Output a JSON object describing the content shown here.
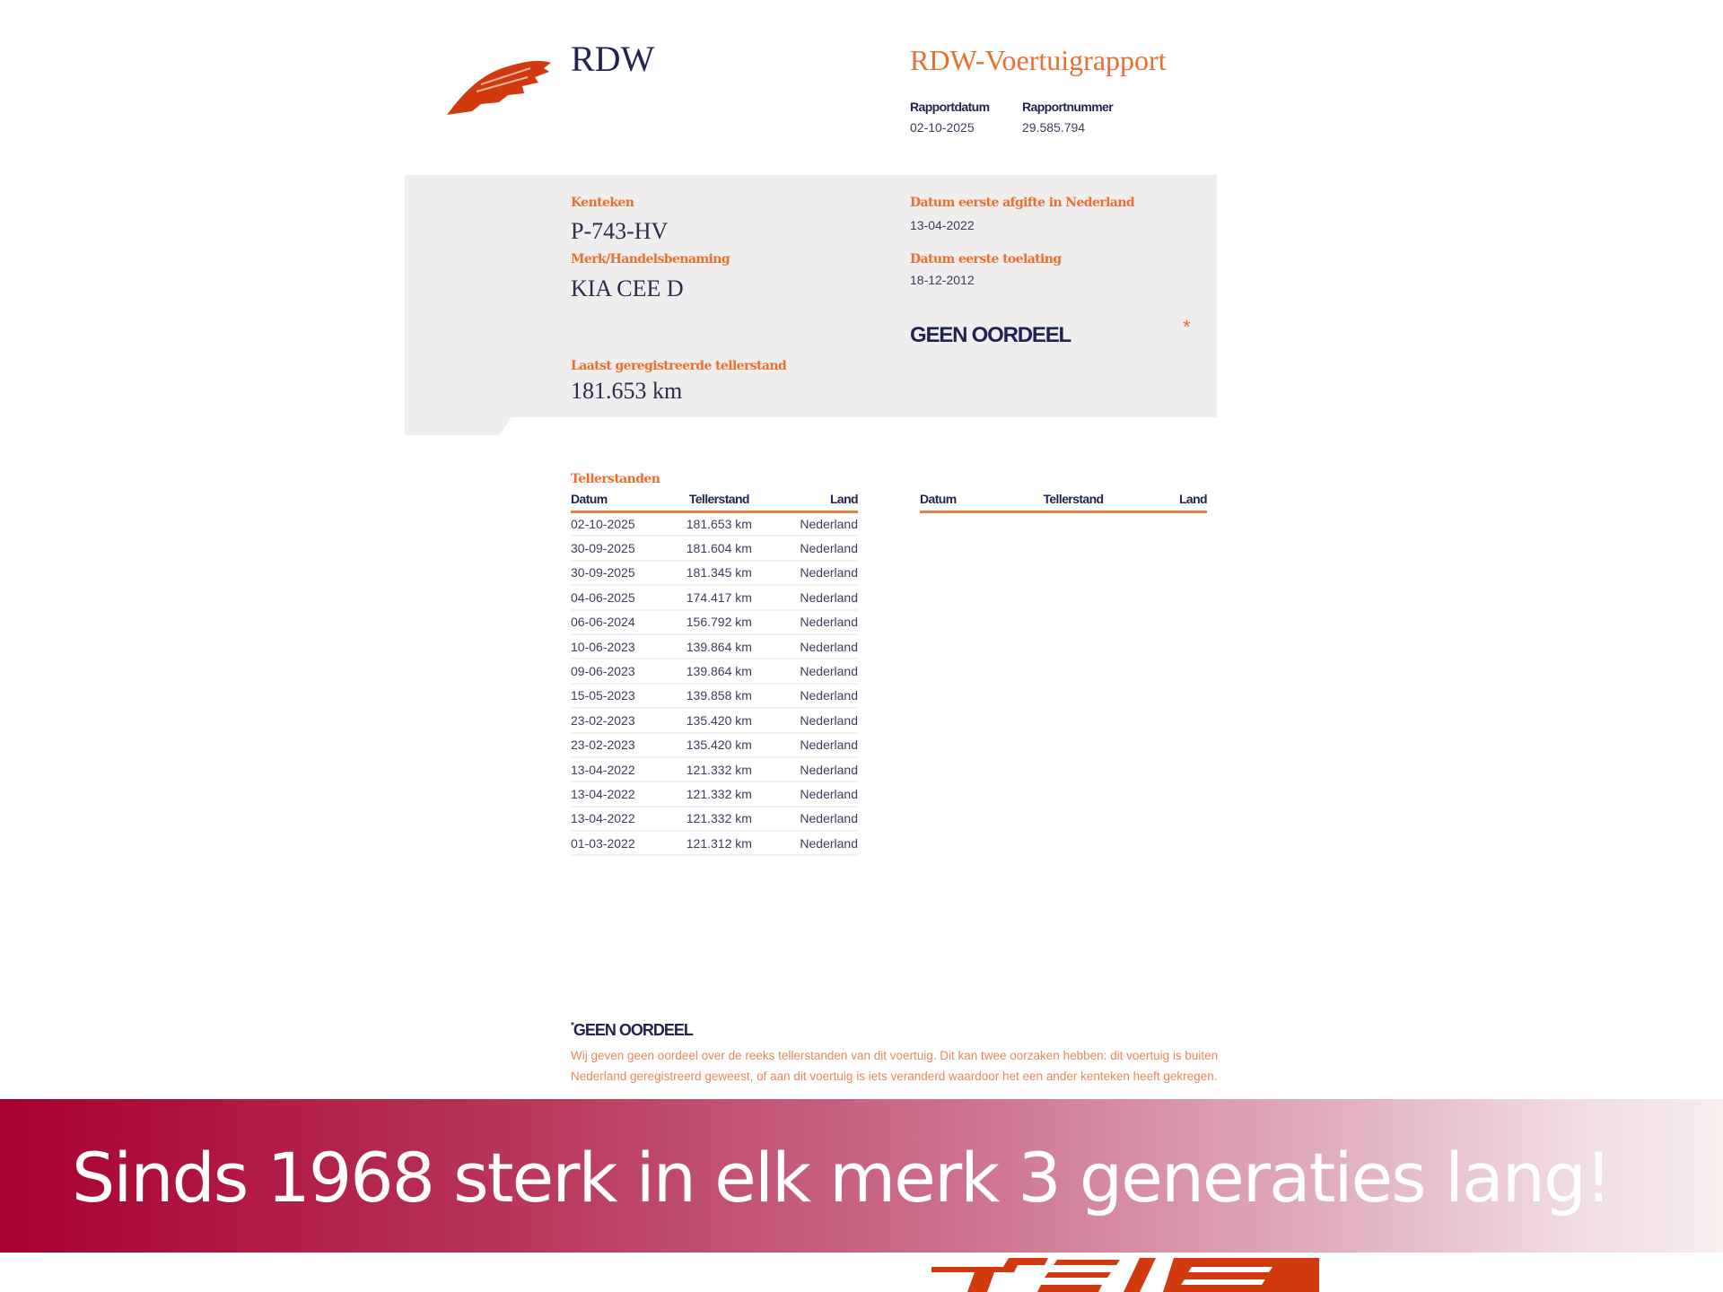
{
  "header": {
    "org": "RDW",
    "title": "RDW-Voertuigrapport",
    "report_date_label": "Rapportdatum",
    "report_date": "02-10-2025",
    "report_number_label": "Rapportnummer",
    "report_number": "29.585.794"
  },
  "vehicle": {
    "plate_label": "Kenteken",
    "plate": "P-743-HV",
    "brand_label": "Merk/Handelsbenaming",
    "brand": "KIA CEE D",
    "first_nl_label": "Datum eerste afgifte in Nederland",
    "first_nl": "13-04-2022",
    "first_admission_label": "Datum eerste toelating",
    "first_admission": "18-12-2012",
    "verdict": "GEEN OORDEEL",
    "asterisk": "*",
    "last_odo_label": "Laatst geregistreerde tellerstand",
    "last_odo": "181.653 km"
  },
  "odometer": {
    "title": "Tellerstanden",
    "columns": [
      "Datum",
      "Tellerstand",
      "Land"
    ],
    "rows": [
      [
        "02-10-2025",
        "181.653 km",
        "Nederland"
      ],
      [
        "30-09-2025",
        "181.604 km",
        "Nederland"
      ],
      [
        "30-09-2025",
        "181.345 km",
        "Nederland"
      ],
      [
        "04-06-2025",
        "174.417 km",
        "Nederland"
      ],
      [
        "06-06-2024",
        "156.792 km",
        "Nederland"
      ],
      [
        "10-06-2023",
        "139.864 km",
        "Nederland"
      ],
      [
        "09-06-2023",
        "139.864 km",
        "Nederland"
      ],
      [
        "15-05-2023",
        "139.858 km",
        "Nederland"
      ],
      [
        "23-02-2023",
        "135.420 km",
        "Nederland"
      ],
      [
        "23-02-2023",
        "135.420 km",
        "Nederland"
      ],
      [
        "13-04-2022",
        "121.332 km",
        "Nederland"
      ],
      [
        "13-04-2022",
        "121.332 km",
        "Nederland"
      ],
      [
        "13-04-2022",
        "121.332 km",
        "Nederland"
      ],
      [
        "01-03-2022",
        "121.312 km",
        "Nederland"
      ]
    ]
  },
  "footnote": {
    "marker": "*",
    "title": "GEEN OORDEEL",
    "text": "Wij geven geen oordeel over de reeks tellerstanden van dit voertuig. Dit kan twee oorzaken hebben: dit voertuig is buiten Nederland geregistreerd geweest, of aan dit voertuig is iets veranderd waardoor het een ander kenteken heeft gekregen."
  },
  "banner": {
    "slogan": "Sinds 1968 sterk in elk merk 3 generaties lang!"
  },
  "colors": {
    "accent": "#e8702f",
    "navy": "#1f2450",
    "banner": "#a8002f",
    "logo": "#d03a0c"
  }
}
